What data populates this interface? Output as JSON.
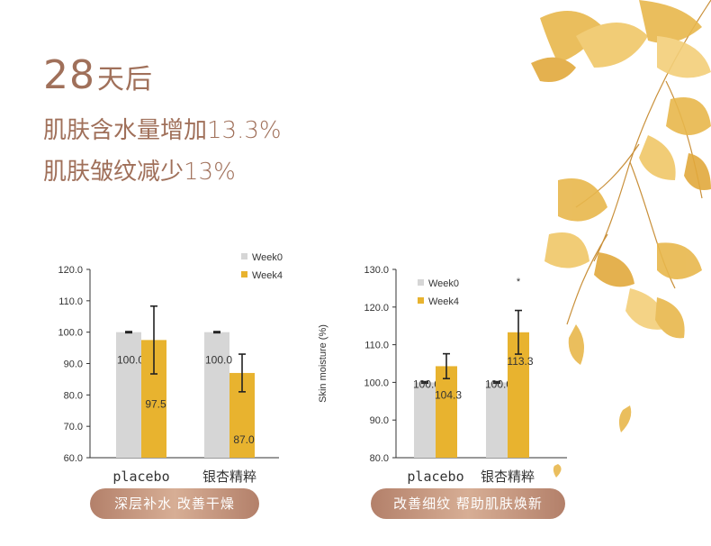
{
  "headline": {
    "days": "28",
    "days_suffix": "天后",
    "line1": "肌肤含水量增加13.3%",
    "line2": "肌肤皱纹减少13%"
  },
  "badges": {
    "left": "深层补水  改善干燥",
    "right": "改善细纹  帮助肌肤焕新"
  },
  "colors": {
    "week0": "#d6d6d6",
    "week4": "#e8b32f",
    "headline": "#a0705a",
    "badge": "#c49980"
  },
  "chart_data": [
    {
      "type": "bar",
      "title": "",
      "ylabel": "",
      "categories": [
        "placebo",
        "银杏精粹"
      ],
      "series": [
        {
          "name": "Week0",
          "values": [
            100.0,
            100.0
          ],
          "errors": [
            0.2,
            0.2
          ]
        },
        {
          "name": "Week4",
          "values": [
            97.5,
            87.0
          ],
          "errors": [
            10.8,
            6.0
          ]
        }
      ],
      "data_labels": [
        [
          "100.0",
          "97.5"
        ],
        [
          "100.0",
          "87.0"
        ]
      ],
      "ylim": [
        60.0,
        120.0
      ],
      "yticks": [
        "60.0",
        "70.0",
        "80.0",
        "90.0",
        "100.0",
        "110.0",
        "120.0"
      ],
      "legend": "top-right",
      "grid": false
    },
    {
      "type": "bar",
      "title": "",
      "ylabel": "Skin moisture (%)",
      "categories": [
        "placebo",
        "银杏精粹"
      ],
      "series": [
        {
          "name": "Week0",
          "values": [
            100.0,
            100.0
          ],
          "errors": [
            0.2,
            0.2
          ]
        },
        {
          "name": "Week4",
          "values": [
            104.3,
            113.3
          ],
          "errors": [
            3.3,
            5.8
          ]
        }
      ],
      "data_labels": [
        [
          "100.0",
          "104.3"
        ],
        [
          "100.0",
          "113.3"
        ]
      ],
      "annotation": "*",
      "ylim": [
        80.0,
        130.0
      ],
      "yticks": [
        "80.0",
        "90.0",
        "100.0",
        "110.0",
        "120.0",
        "130.0"
      ],
      "legend": "top-left",
      "grid": false
    }
  ]
}
